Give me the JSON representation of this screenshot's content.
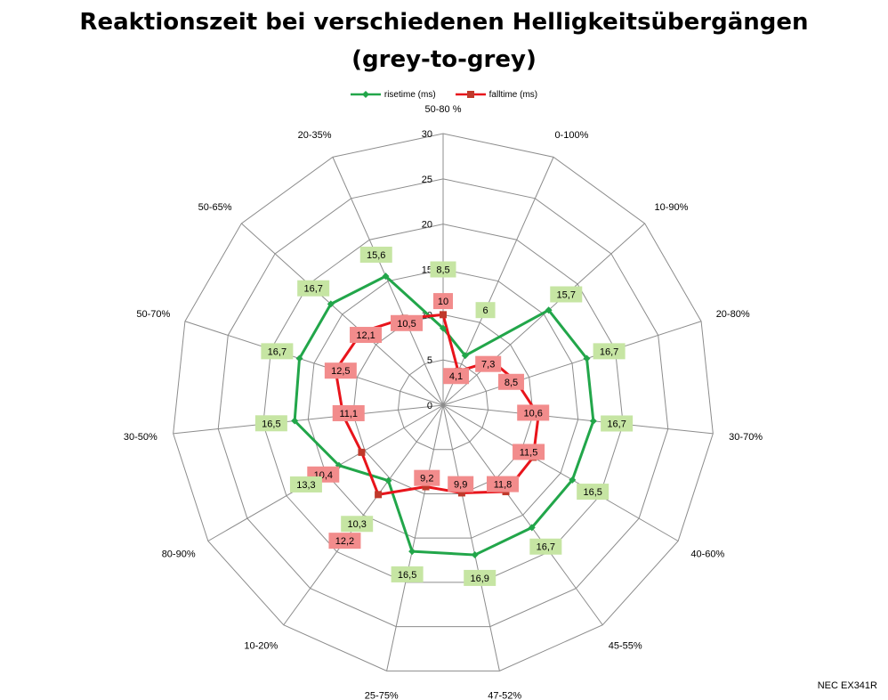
{
  "chart_data": {
    "type": "radar",
    "title_line1": "Reaktionszeit bei verschiedenen Helligkeitsübergängen",
    "title_line2": "(grey-to-grey)",
    "categories": [
      "50-80 %",
      "0-100%",
      "10-90%",
      "20-80%",
      "30-70%",
      "40-60%",
      "45-55%",
      "47-52%",
      "25-75%",
      "10-20%",
      "80-90%",
      "30-50%",
      "50-70%",
      "50-65%",
      "20-35%"
    ],
    "ticks": [
      0,
      5,
      10,
      15,
      20,
      25,
      30
    ],
    "rlim": [
      0,
      30
    ],
    "grid": true,
    "legend_position": "top-center",
    "series": [
      {
        "name": "risetime (ms)",
        "color": "#22a64a",
        "label_bg": "#c6e5a3",
        "marker": "diamond",
        "values": [
          8.5,
          6,
          15.7,
          16.7,
          16.7,
          16.5,
          16.7,
          16.9,
          16.5,
          10.3,
          13.3,
          16.5,
          16.7,
          16.7,
          15.6
        ],
        "labels": [
          "8,5",
          "6",
          "15,7",
          "16,7",
          "16,7",
          "16,5",
          "16,7",
          "16,9",
          "16,5",
          "10,3",
          "13,3",
          "16,5",
          "16,7",
          "16,7",
          "15,6"
        ]
      },
      {
        "name": "falltime (ms)",
        "color": "#e8141b",
        "label_bg": "#f28c8c",
        "marker": "square",
        "values": [
          10,
          4.1,
          7.3,
          8.5,
          10.6,
          11.5,
          11.8,
          9.9,
          9.2,
          12.2,
          10.4,
          11.1,
          12.5,
          12.1,
          10.5
        ],
        "labels": [
          "10",
          "4,1",
          "7,3",
          "8,5",
          "10,6",
          "11,5",
          "11,8",
          "9,9",
          "9,2",
          "12,2",
          "10,4",
          "11,1",
          "12,5",
          "12,1",
          "10,5"
        ]
      }
    ]
  },
  "footer": "NEC EX341R"
}
